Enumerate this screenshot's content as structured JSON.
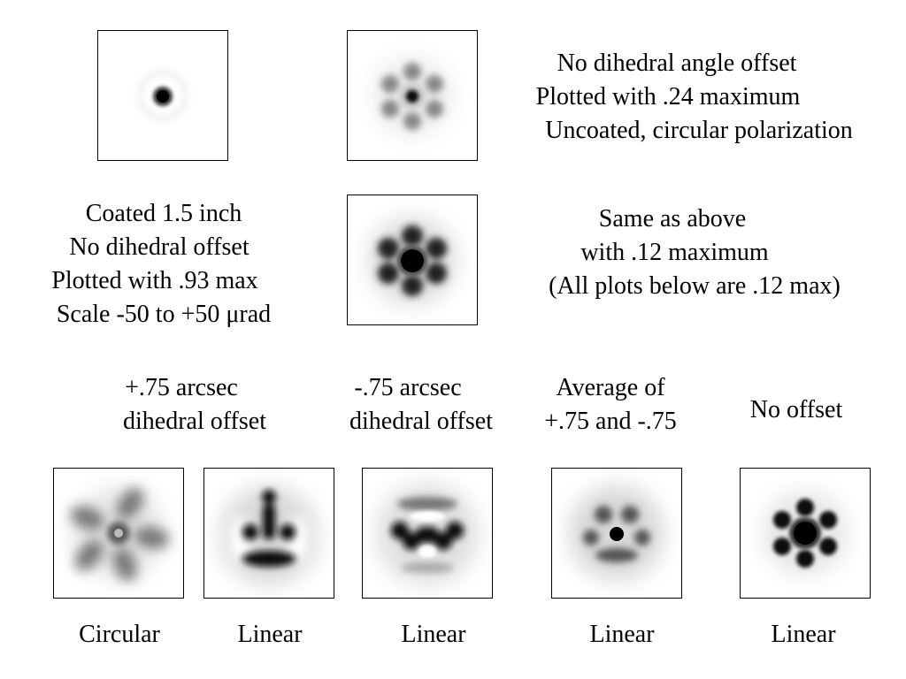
{
  "top_text": {
    "line1": "No dihedral angle offset",
    "line2": "Plotted with .24 maximum",
    "line3": "Uncoated, circular polarization"
  },
  "coated_text": {
    "line1": "Coated 1.5 inch",
    "line2": "No dihedral offset",
    "line3": "Plotted with .93 max",
    "line4": "Scale -50 to +50 μrad"
  },
  "same_text": {
    "line1": "Same as above",
    "line2": "with .12 maximum",
    "line3": "(All plots below are .12 max)"
  },
  "row3_headers": {
    "plus": {
      "line1": "+.75 arcsec",
      "line2": "dihedral offset"
    },
    "minus": {
      "line1": "-.75 arcsec",
      "line2": "dihedral offset"
    },
    "average": {
      "line1": "Average of",
      "line2": "+.75 and -.75"
    },
    "none": {
      "line1": "No offset"
    }
  },
  "bottom_captions": {
    "c1": "Circular",
    "c2": "Linear",
    "c3": "Linear",
    "c4": "Linear",
    "c5": "Linear"
  }
}
